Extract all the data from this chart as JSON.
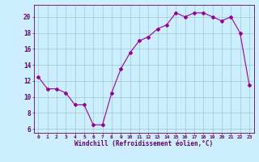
{
  "hours": [
    0,
    1,
    2,
    3,
    4,
    5,
    6,
    7,
    8,
    9,
    10,
    11,
    12,
    13,
    14,
    15,
    16,
    17,
    18,
    19,
    20,
    21,
    22,
    23
  ],
  "windchill": [
    12.5,
    11.0,
    11.0,
    10.5,
    9.0,
    9.0,
    6.5,
    6.5,
    10.5,
    13.5,
    15.5,
    17.0,
    17.5,
    18.5,
    19.0,
    20.5,
    20.0,
    20.5,
    20.5,
    20.0,
    19.5,
    20.0,
    18.0,
    11.5
  ],
  "line_color": "#990099",
  "marker": "D",
  "markersize": 2,
  "bg_color": "#cceeff",
  "grid_color": "#99cccc",
  "xlabel": "Windchill (Refroidissement éolien,°C)",
  "xlabel_color": "#660066",
  "tick_color": "#660066",
  "ylim": [
    5.5,
    21.5
  ],
  "yticks": [
    6,
    8,
    10,
    12,
    14,
    16,
    18,
    20
  ],
  "xlim": [
    -0.5,
    23.5
  ],
  "xticks": [
    0,
    1,
    2,
    3,
    4,
    5,
    6,
    7,
    8,
    9,
    10,
    11,
    12,
    13,
    14,
    15,
    16,
    17,
    18,
    19,
    20,
    21,
    22,
    23
  ]
}
